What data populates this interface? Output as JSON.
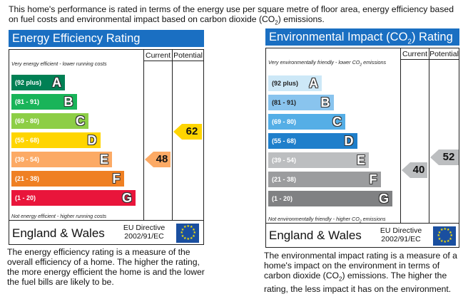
{
  "intro": {
    "line1": "This home's performance is rated in terms of the energy use per square metre of floor area, energy efficiency based",
    "line2_a": "on fuel costs and environmental impact based on carbon dioxide (CO",
    "line2_sub": "2",
    "line2_b": ") emissions."
  },
  "colors": {
    "title_bg": "#1a6fc2",
    "frame": "#222222",
    "eu_flag": "#1a4fa0"
  },
  "chart_data": [
    {
      "type": "bar",
      "title": "Energy Efficiency Rating",
      "column_headers": [
        "Current",
        "Potential"
      ],
      "top_note": "Very energy efficient - lower running costs",
      "bottom_note": "Not energy efficient - higher running costs",
      "bands": [
        {
          "range": "(92 plus)",
          "letter": "A",
          "color": "#008054"
        },
        {
          "range": "(81 - 91)",
          "letter": "B",
          "color": "#19b459"
        },
        {
          "range": "(69 - 80)",
          "letter": "C",
          "color": "#8dce46"
        },
        {
          "range": "(55 - 68)",
          "letter": "D",
          "color": "#ffd500"
        },
        {
          "range": "(39 - 54)",
          "letter": "E",
          "color": "#fcaa65"
        },
        {
          "range": "(21 - 38)",
          "letter": "F",
          "color": "#ef8023"
        },
        {
          "range": "(1 - 20)",
          "letter": "G",
          "color": "#e9153b"
        }
      ],
      "current": {
        "value": "48",
        "band": "E",
        "color": "#fcaa65"
      },
      "potential": {
        "value": "62",
        "band": "D",
        "color": "#ffd500"
      },
      "footer": {
        "region": "England & Wales",
        "directive_line1": "EU Directive",
        "directive_line2": "2002/91/EC"
      },
      "caption": [
        "The energy efficiency rating is a measure of the",
        "overall efficiency of a home. The higher the rating,",
        "the more energy efficient the home is and the lower",
        "the fuel bills are likely to be."
      ]
    },
    {
      "type": "bar",
      "title_a": "Environmental Impact (CO",
      "title_sub": "2",
      "title_b": ") Rating",
      "column_headers": [
        "Current",
        "Potential"
      ],
      "top_note_a": "Very environmentally friendly - lower CO",
      "top_note_sub": "2",
      "top_note_b": " emissions",
      "bottom_note_a": "Not environmentally friendly - higher CO",
      "bottom_note_sub": "2",
      "bottom_note_b": " emissions",
      "bands": [
        {
          "range": "(92 plus)",
          "letter": "A",
          "color": "#cde8f7"
        },
        {
          "range": "(81 - 91)",
          "letter": "B",
          "color": "#89c4ee"
        },
        {
          "range": "(69 - 80)",
          "letter": "C",
          "color": "#55aee6"
        },
        {
          "range": "(55 - 68)",
          "letter": "D",
          "color": "#1f7fcb"
        },
        {
          "range": "(39 - 54)",
          "letter": "E",
          "color": "#bcbec0"
        },
        {
          "range": "(21 - 38)",
          "letter": "F",
          "color": "#9b9c9e"
        },
        {
          "range": "(1 - 20)",
          "letter": "G",
          "color": "#808183"
        }
      ],
      "current": {
        "value": "40",
        "band": "E",
        "color": "#bcbec0"
      },
      "potential": {
        "value": "52",
        "band": "E",
        "color": "#bcbec0"
      },
      "footer": {
        "region": "England & Wales",
        "directive_line1": "EU Directive",
        "directive_line2": "2002/91/EC"
      },
      "caption_1": "The environmental impact rating is a measure of a",
      "caption_2": "home's impact on the environment in terms of",
      "caption_3a": "carbon dioxide (CO",
      "caption_3sub": "2",
      "caption_3b": ") emissions. The higher the",
      "caption_4": "rating, the less impact it has on the environment."
    }
  ]
}
